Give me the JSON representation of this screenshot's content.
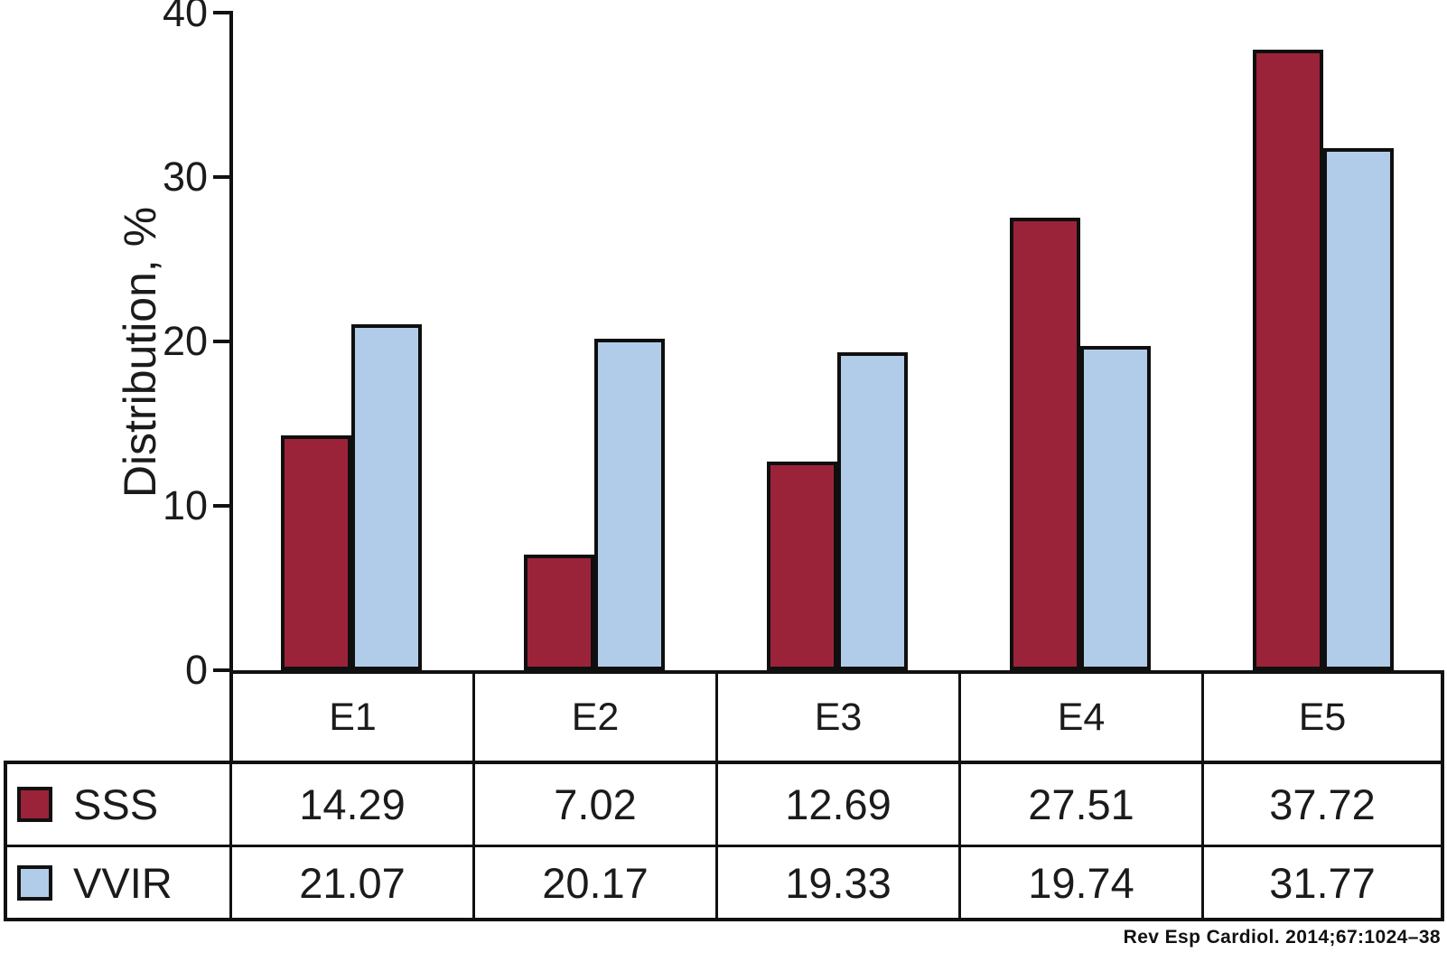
{
  "chart_data": {
    "type": "bar",
    "title": "",
    "categories": [
      "E1",
      "E2",
      "E3",
      "E4",
      "E5"
    ],
    "series": [
      {
        "name": "SSS",
        "color": "#9B2339",
        "values": [
          14.29,
          7.02,
          12.69,
          27.51,
          37.72
        ]
      },
      {
        "name": "VVIR",
        "color": "#B1CCE9",
        "values": [
          21.07,
          20.17,
          19.33,
          19.74,
          31.77
        ]
      }
    ],
    "xlabel": "",
    "ylabel": "Distribution, %",
    "ylim": [
      0,
      40
    ],
    "yticks": [
      0,
      10,
      20,
      30,
      40
    ],
    "grid": false,
    "legend_position": "table-left",
    "bar_outline_color": "#0F0F0F",
    "value_format": "2-decimals"
  },
  "citation": "Rev Esp Cardiol. 2014;67:1024–38"
}
